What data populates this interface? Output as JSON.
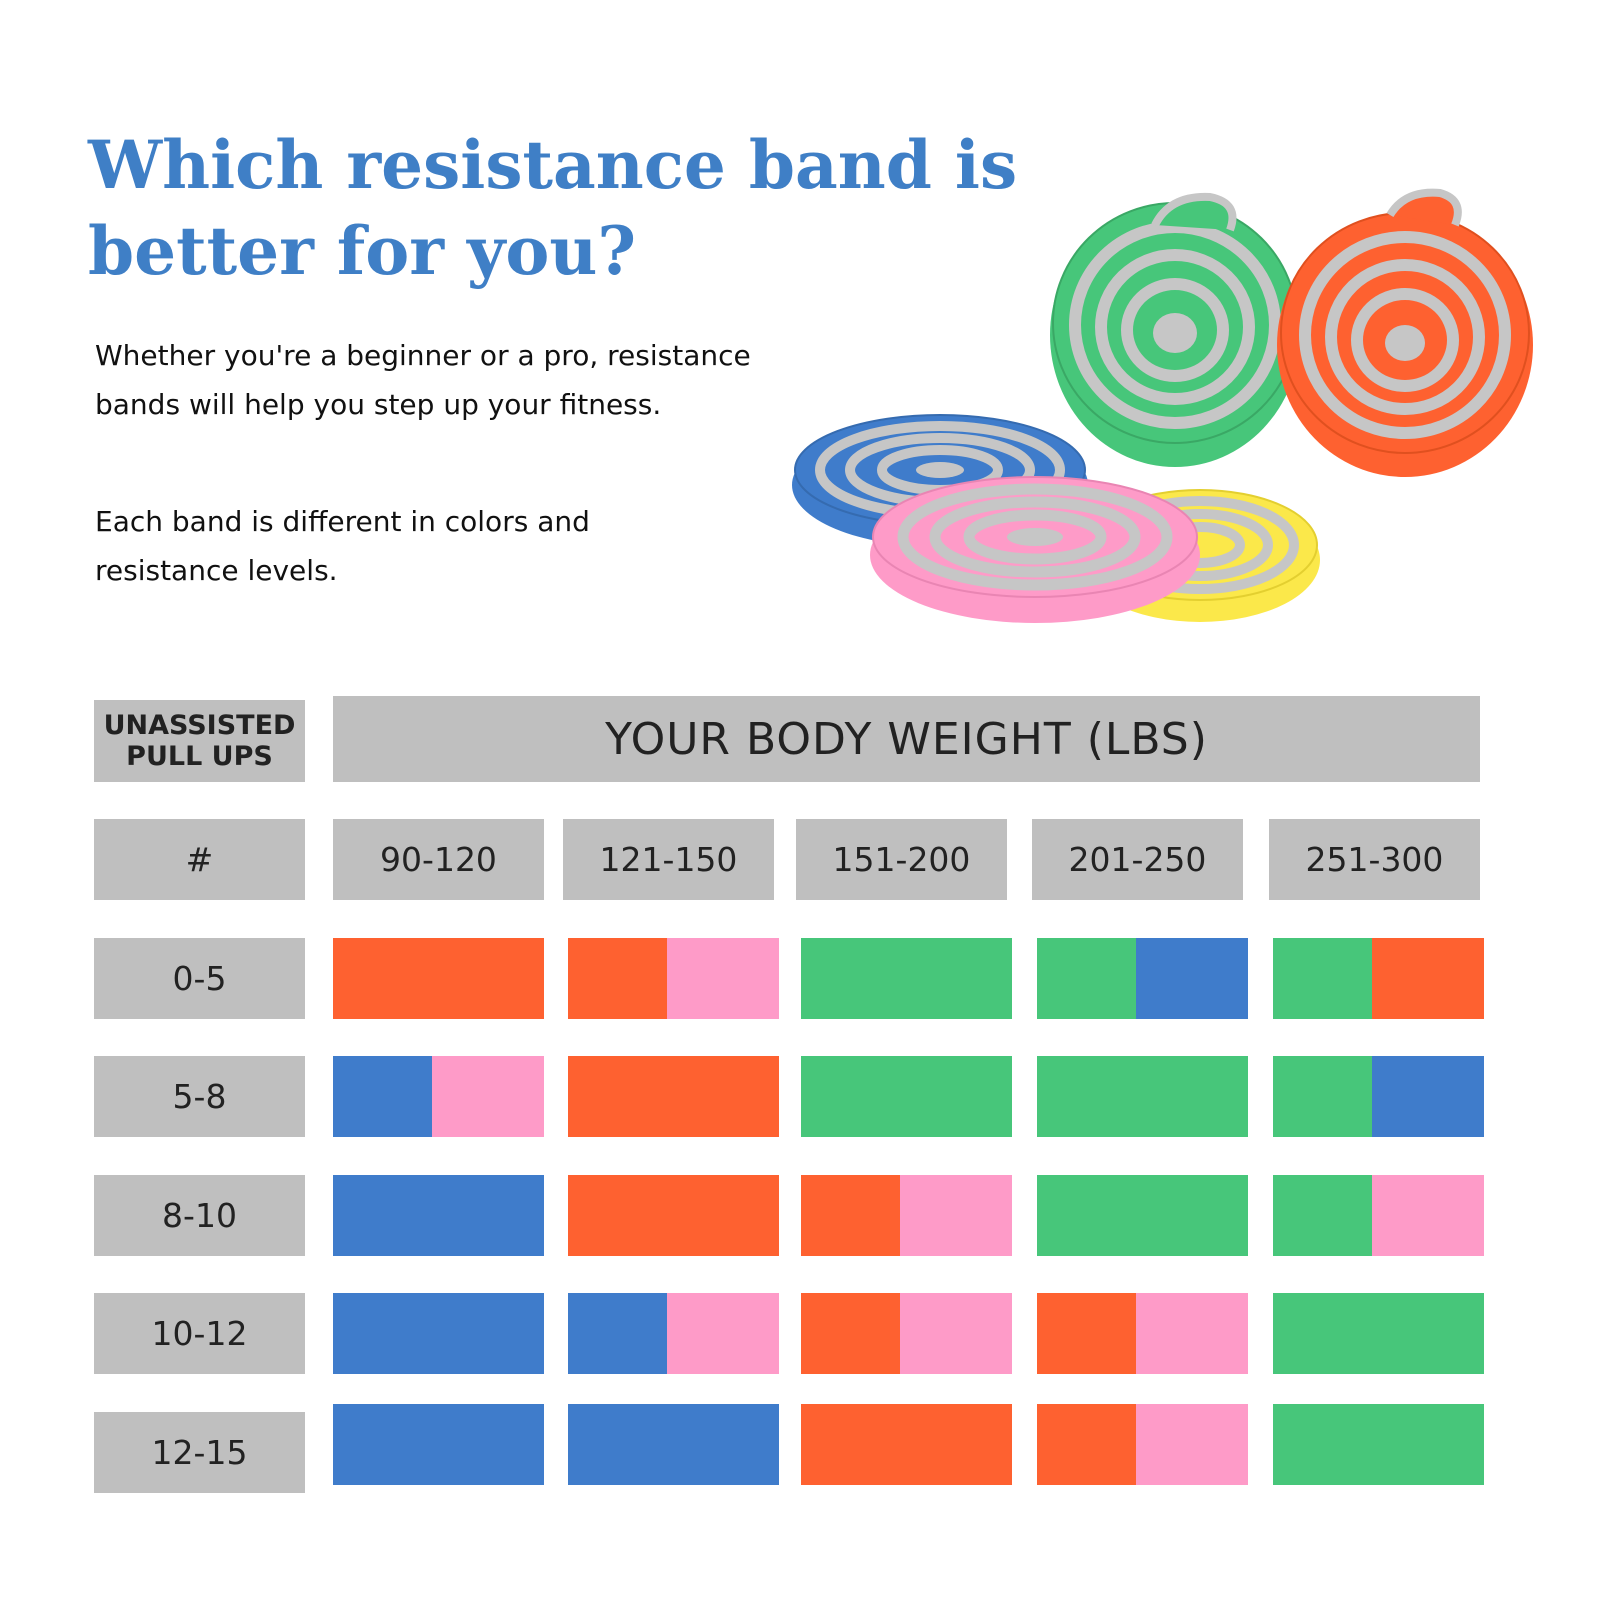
{
  "title": "Which resistance band is better for you?",
  "intro": [
    "Whether you're a beginner or a pro, resistance bands will help you step up your fitness.",
    "Each band is different in colors and resistance levels."
  ],
  "colors": {
    "orange": "#fe6130",
    "pink": "#fe9bc8",
    "green": "#47c67a",
    "blue": "#3f7ccb",
    "yellow": "#fbe84a",
    "gray": "#bfbfbf"
  },
  "table": {
    "left_header": "UNASSISTED PULL UPS",
    "top_header": "YOUR BODY WEIGHT (LBS)",
    "hash_label": "#",
    "weights": [
      "90-120",
      "121-150",
      "151-200",
      "201-250",
      "251-300"
    ],
    "rows": [
      {
        "label": "0-5",
        "bands": [
          [
            "orange"
          ],
          [
            "orange",
            "pink"
          ],
          [
            "green"
          ],
          [
            "green",
            "blue"
          ],
          [
            "green",
            "orange"
          ]
        ]
      },
      {
        "label": "5-8",
        "bands": [
          [
            "blue",
            "pink"
          ],
          [
            "orange"
          ],
          [
            "green"
          ],
          [
            "green"
          ],
          [
            "green",
            "blue"
          ]
        ]
      },
      {
        "label": "8-10",
        "bands": [
          [
            "blue"
          ],
          [
            "orange"
          ],
          [
            "orange",
            "pink"
          ],
          [
            "green"
          ],
          [
            "green",
            "pink"
          ]
        ]
      },
      {
        "label": "10-12",
        "bands": [
          [
            "blue"
          ],
          [
            "blue",
            "pink"
          ],
          [
            "orange",
            "pink"
          ],
          [
            "orange",
            "pink"
          ],
          [
            "green"
          ]
        ]
      },
      {
        "label": "12-15",
        "bands": [
          [
            "blue"
          ],
          [
            "blue"
          ],
          [
            "orange"
          ],
          [
            "orange",
            "pink"
          ],
          [
            "green"
          ]
        ]
      }
    ]
  }
}
